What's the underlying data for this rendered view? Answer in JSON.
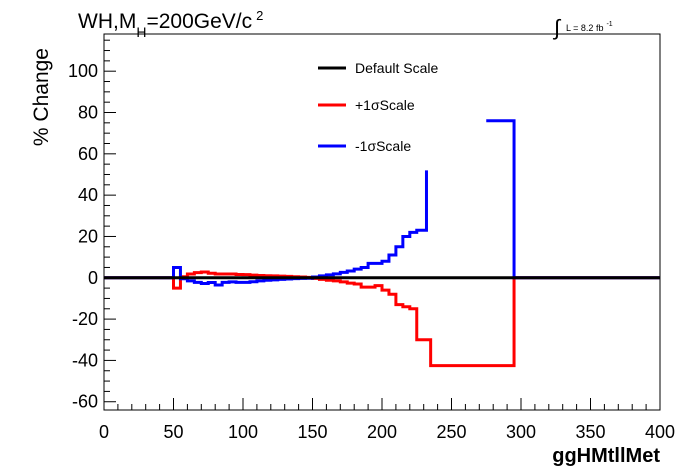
{
  "chart_data": {
    "type": "line",
    "title": {
      "main": "WH,M",
      "subscript": "H",
      "after_subscript": "=200GeV/c",
      "superscript": "2"
    },
    "luminosity_label": {
      "text": "L = 8.2 fb",
      "superscript": "-1"
    },
    "xlabel": "ggHMtllMet",
    "ylabel": "% Change",
    "xlim": [
      0,
      400
    ],
    "ylim": [
      -64,
      118
    ],
    "xticks": [
      0,
      50,
      100,
      150,
      200,
      250,
      300,
      350,
      400
    ],
    "xtick_labels": [
      "0",
      "50",
      "100",
      "150",
      "200",
      "250",
      "300",
      "350",
      "400"
    ],
    "yticks": [
      -60,
      -40,
      -20,
      0,
      20,
      40,
      60,
      80,
      100
    ],
    "ytick_labels": [
      "-60",
      "-40",
      "-20",
      "0",
      "20",
      "40",
      "60",
      "80",
      "100"
    ],
    "grid": false,
    "legend_position": "top-center",
    "series": [
      {
        "name": "Default Scale",
        "color": "#000000",
        "x": [
          0,
          400
        ],
        "y": [
          0,
          0
        ]
      },
      {
        "name": "+1σScale",
        "color": "#ff0000",
        "x": [
          0,
          50,
          50,
          55,
          55,
          60,
          60,
          65,
          65,
          70,
          70,
          75,
          75,
          80,
          80,
          85,
          85,
          90,
          90,
          95,
          95,
          100,
          100,
          105,
          105,
          110,
          110,
          115,
          115,
          120,
          120,
          125,
          125,
          130,
          130,
          135,
          135,
          140,
          140,
          145,
          145,
          150,
          150,
          155,
          155,
          160,
          160,
          165,
          165,
          170,
          170,
          175,
          175,
          180,
          180,
          185,
          185,
          190,
          190,
          195,
          195,
          200,
          200,
          205,
          205,
          210,
          210,
          215,
          215,
          220,
          220,
          225,
          225,
          230,
          230,
          235,
          235,
          240,
          240,
          295,
          295,
          400
        ],
        "y": [
          0,
          0,
          -5,
          -5,
          0.5,
          0.5,
          1.8,
          1.8,
          2.5,
          2.5,
          2.8,
          2.8,
          2.2,
          2.2,
          1.8,
          1.8,
          1.8,
          1.8,
          1.8,
          1.8,
          1.6,
          1.6,
          1.5,
          1.5,
          1.3,
          1.3,
          1.1,
          1.1,
          1.0,
          1.0,
          0.9,
          0.9,
          0.8,
          0.8,
          0.7,
          0.7,
          0.5,
          0.5,
          0.4,
          0.4,
          0.2,
          0.2,
          -0.3,
          -0.3,
          -0.8,
          -0.8,
          -1.2,
          -1.2,
          -1.5,
          -1.5,
          -2.0,
          -2.0,
          -2.6,
          -2.6,
          -3.0,
          -3.0,
          -4.5,
          -4.5,
          -4.5,
          -4.5,
          -3.8,
          -3.8,
          -6.0,
          -6.0,
          -8.0,
          -8.0,
          -13,
          -13,
          -14,
          -14,
          -15,
          -15,
          -30,
          -30,
          -30,
          -30,
          -42.5,
          -42.5,
          -42.5,
          -42.5,
          0,
          0
        ]
      },
      {
        "name": "-1σScale",
        "color": "#0000ff",
        "x": [
          0,
          50,
          50,
          55,
          55,
          60,
          60,
          65,
          65,
          70,
          70,
          75,
          75,
          80,
          80,
          85,
          85,
          90,
          90,
          95,
          95,
          100,
          100,
          105,
          105,
          110,
          110,
          115,
          115,
          120,
          120,
          125,
          125,
          130,
          130,
          135,
          135,
          140,
          140,
          145,
          145,
          150,
          150,
          155,
          155,
          160,
          160,
          165,
          165,
          170,
          170,
          175,
          175,
          180,
          180,
          185,
          185,
          190,
          190,
          195,
          195,
          200,
          200,
          205,
          205,
          210,
          210,
          215,
          215,
          220,
          220,
          225,
          225,
          230,
          230,
          232,
          232
        ],
        "y": [
          0,
          0,
          5,
          5,
          -0.5,
          -0.5,
          -1.5,
          -1.5,
          -2.2,
          -2.2,
          -2.8,
          -2.8,
          -2.3,
          -2.3,
          -3.5,
          -3.5,
          -2.2,
          -2.2,
          -2.0,
          -2.0,
          -2.2,
          -2.2,
          -2.2,
          -2.2,
          -1.9,
          -1.9,
          -1.5,
          -1.5,
          -1.2,
          -1.2,
          -1.0,
          -1.0,
          -0.8,
          -0.8,
          -0.6,
          -0.6,
          -0.4,
          -0.4,
          -0.3,
          -0.3,
          -0.2,
          -0.2,
          0.4,
          0.4,
          0.9,
          0.9,
          1.4,
          1.4,
          1.9,
          1.9,
          2.6,
          2.6,
          3.3,
          3.3,
          4.2,
          4.2,
          5.0,
          5.0,
          7.0,
          7.0,
          7.0,
          7.0,
          8.0,
          8.0,
          11,
          11,
          15,
          15,
          20,
          20,
          22,
          22,
          23,
          23,
          23,
          23,
          52
        ]
      },
      {
        "name": "-1σScale",
        "color": "#0000ff",
        "x": [
          275,
          295,
          295,
          400
        ],
        "y": [
          76,
          76,
          0,
          0
        ]
      }
    ],
    "legend": [
      {
        "label": "Default Scale",
        "color": "#000000"
      },
      {
        "label": "+1σScale",
        "color": "#ff0000"
      },
      {
        "label": "-1σScale",
        "color": "#0000ff"
      }
    ]
  }
}
